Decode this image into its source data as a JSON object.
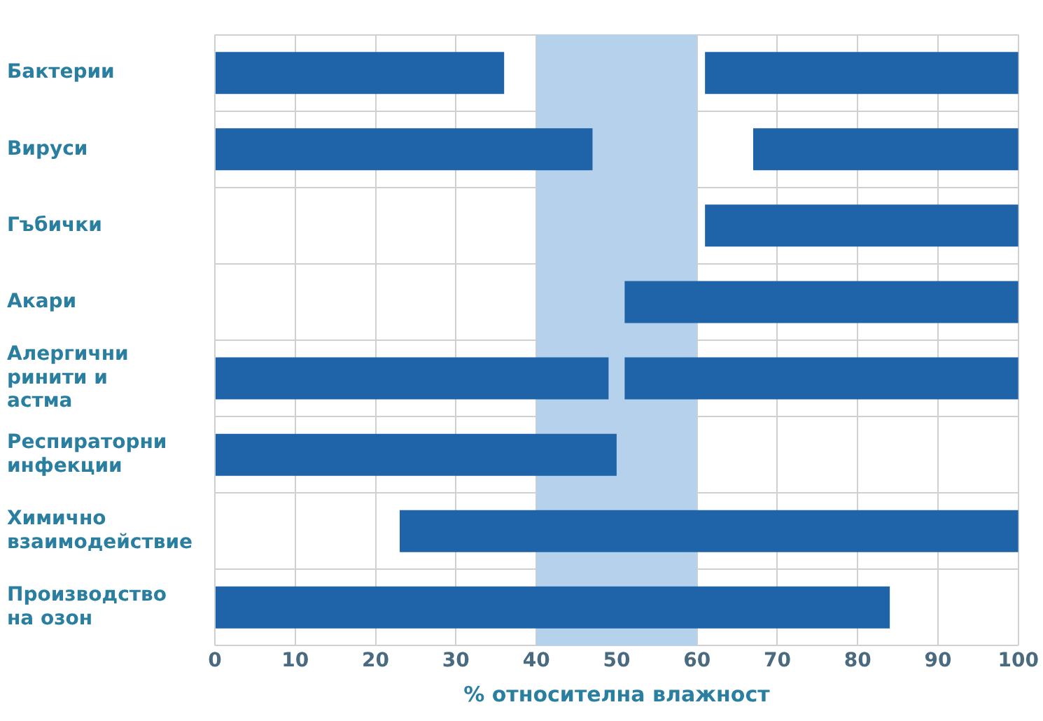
{
  "chart_data": {
    "type": "bar",
    "orientation": "horizontal",
    "xlabel": "% относителна влажност",
    "categories": [
      "Бактерии",
      "Вируси",
      "Гъбички",
      "Акари",
      "Алергични ринити и астма",
      "Респираторни инфекции",
      "Химично взаимодействие",
      "Производство на озон"
    ],
    "series": [
      {
        "color": "#1f63a8",
        "base": [
          0,
          0,
          null,
          null,
          0,
          0,
          null,
          0
        ],
        "values": [
          36,
          47,
          null,
          null,
          49,
          50,
          null,
          84
        ]
      },
      {
        "color": "#1f63a8",
        "base": [
          61,
          67,
          61,
          51,
          51,
          null,
          23,
          null
        ],
        "values": [
          39,
          33,
          39,
          49,
          49,
          null,
          77,
          null
        ]
      }
    ],
    "xlim": [
      0,
      100
    ],
    "xticks": [
      0,
      10,
      20,
      30,
      40,
      50,
      60,
      70,
      80,
      90,
      100
    ],
    "bands": [
      {
        "axis": "x",
        "from": 40,
        "to": 60,
        "color": "#b5d1ec"
      }
    ],
    "grid": true
  }
}
